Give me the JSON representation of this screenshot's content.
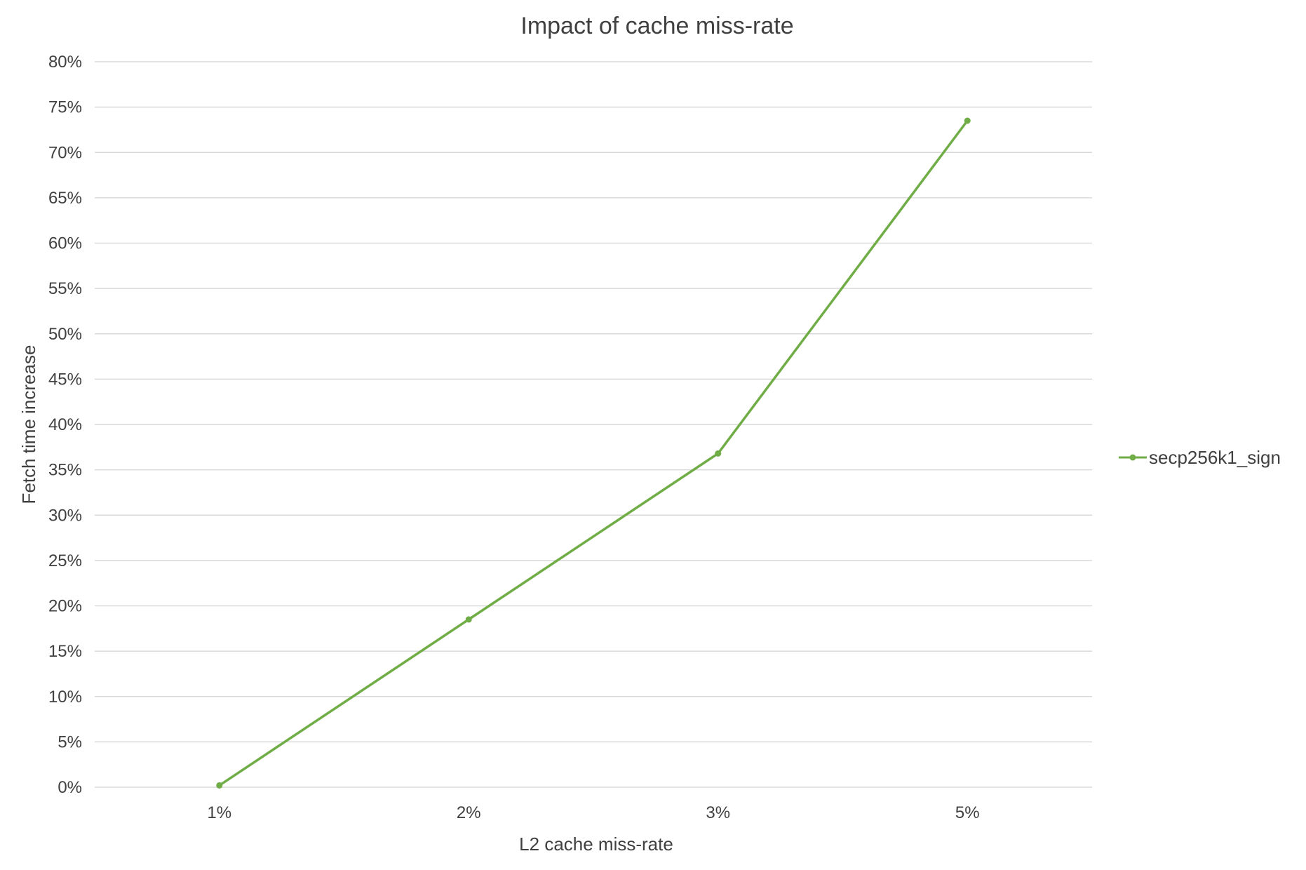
{
  "chart_data": {
    "type": "line",
    "title": "Impact of cache miss-rate",
    "xlabel": "L2 cache miss-rate",
    "ylabel": "Fetch time increase",
    "categories": [
      "1%",
      "2%",
      "3%",
      "5%"
    ],
    "series": [
      {
        "name": "secp256k1_sign",
        "values": [
          0.2,
          18.5,
          36.8,
          73.5
        ]
      }
    ],
    "ylim": [
      0,
      80
    ],
    "yticks": [
      "0%",
      "5%",
      "10%",
      "15%",
      "20%",
      "25%",
      "30%",
      "35%",
      "40%",
      "45%",
      "50%",
      "55%",
      "60%",
      "65%",
      "70%",
      "75%",
      "80%"
    ],
    "grid": true,
    "legend": "right",
    "colors": {
      "series": "#70ad47",
      "grid": "#d9d9d9",
      "text": "#404040"
    }
  }
}
